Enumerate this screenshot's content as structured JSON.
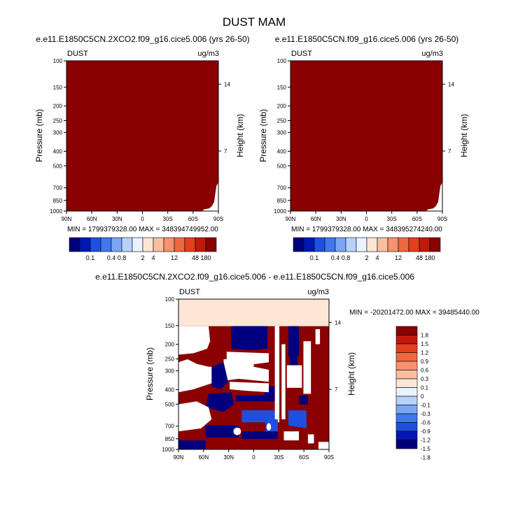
{
  "figure": {
    "title": "DUST MAM"
  },
  "palettes": {
    "abs": [
      "#00007f",
      "#0018b3",
      "#1e50e0",
      "#3f78f0",
      "#7aa6f5",
      "#b6d2fb",
      "#eaf3fd",
      "#fde6d6",
      "#fbbfa0",
      "#f7926d",
      "#f0693e",
      "#e2401f",
      "#bf1a0c",
      "#8b0000"
    ],
    "diff": [
      "#00007f",
      "#0018b3",
      "#1e50e0",
      "#3f78f0",
      "#7aa6f5",
      "#b6d2fb",
      "#eaf3fd",
      "#fde6d6",
      "#fbbfa0",
      "#f7926d",
      "#f0693e",
      "#e2401f",
      "#bf1a0c",
      "#8b0000"
    ]
  },
  "colors": {
    "dark_red": "#8b0000",
    "navy": "#00007f",
    "blue": "#1e50e0",
    "peach": "#fde6d6"
  },
  "chart_data": [
    {
      "type": "heatmap",
      "title": "e.e11.E1850C5CN.2XCO2.f09_g16.cice5.006 (yrs 26-50)",
      "variable": "DUST",
      "units": "ug/m3",
      "ylabel": "Pressure (mb)",
      "ylabel_right": "Height (km)",
      "yticks": [
        "100",
        "150",
        "200",
        "250",
        "300",
        "400",
        "500",
        "700",
        "850",
        "1000"
      ],
      "yticks_right": [
        "14",
        "7"
      ],
      "xticks": [
        "90N",
        "60N",
        "30N",
        "0",
        "30S",
        "60S",
        "90S"
      ],
      "stats": "MIN = 1799379328.00   MAX = 348394749952.00",
      "colorbar_labels": [
        "0.1",
        "0.4",
        "0.8",
        "2",
        "4",
        "12",
        "48",
        "180"
      ],
      "fill_color": "#8b0000"
    },
    {
      "type": "heatmap",
      "title": "e.e11.E1850C5CN.f09_g16.cice5.006 (yrs 26-50)",
      "variable": "DUST",
      "units": "ug/m3",
      "ylabel": "Pressure (mb)",
      "ylabel_right": "Height (km)",
      "yticks": [
        "100",
        "150",
        "200",
        "250",
        "300",
        "400",
        "500",
        "700",
        "850",
        "1000"
      ],
      "yticks_right": [
        "14",
        "7"
      ],
      "xticks": [
        "90N",
        "60N",
        "30N",
        "0",
        "30S",
        "60S",
        "90S"
      ],
      "stats": "MIN = 1799379328.00   MAX = 348395274240.00",
      "colorbar_labels": [
        "0.1",
        "0.4",
        "0.8",
        "2",
        "4",
        "12",
        "48",
        "180"
      ],
      "fill_color": "#8b0000"
    },
    {
      "type": "heatmap",
      "title": "e.e11.E1850C5CN.2XCO2.f09_g16.cice5.006 - e.e11.E1850C5CN.f09_g16.cice5.006",
      "variable": "DUST",
      "units": "ug/m3",
      "ylabel": "Pressure (mb)",
      "ylabel_right": "Height (km)",
      "yticks": [
        "100",
        "150",
        "200",
        "250",
        "300",
        "400",
        "500",
        "700",
        "850",
        "1000"
      ],
      "yticks_right": [
        "14",
        "7"
      ],
      "xticks": [
        "90N",
        "60N",
        "30N",
        "0",
        "30S",
        "60S",
        "90S"
      ],
      "stats": "MIN = -20201472.00   MAX = 39485440.00",
      "colorbar_labels": [
        "1.8",
        "1.5",
        "1.2",
        "0.9",
        "0.6",
        "0.3",
        "0.1",
        "0",
        "-0.1",
        "-0.3",
        "-0.6",
        "-0.9",
        "-1.2",
        "-1.5",
        "-1.8"
      ]
    }
  ]
}
